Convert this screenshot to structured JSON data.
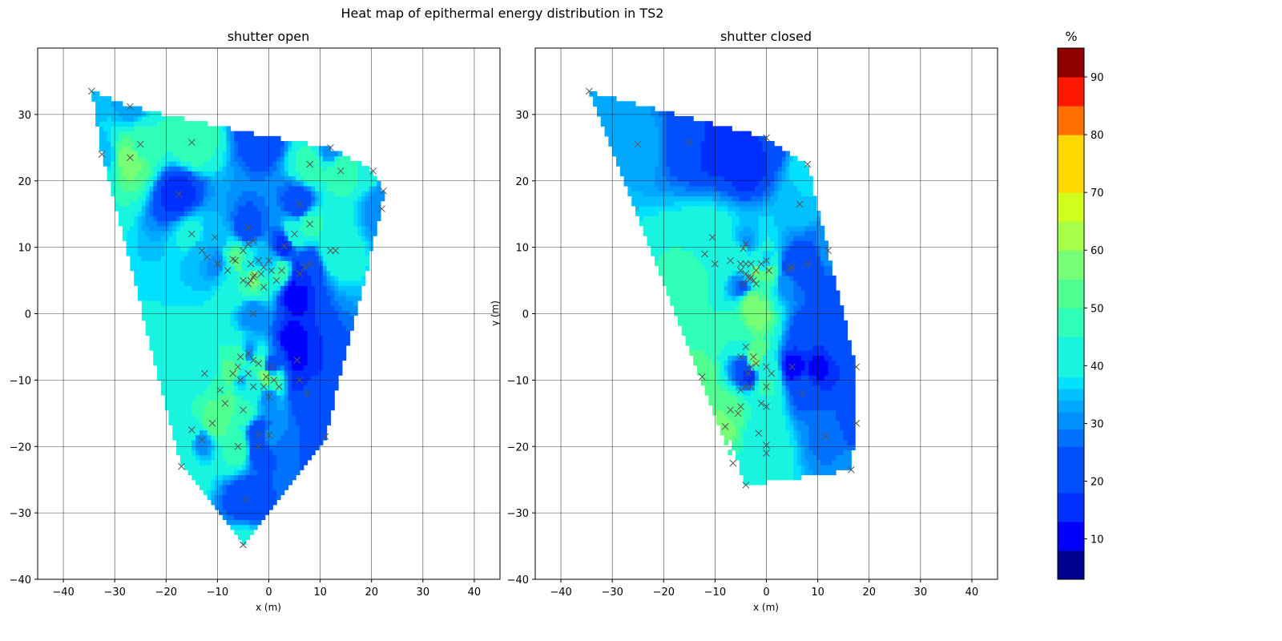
{
  "figure_title": "Heat map of epithermal energy distribution in TS2",
  "colormap": [
    "#00008f",
    "#0000ff",
    "#0030ff",
    "#0050ff",
    "#0070ff",
    "#0090ff",
    "#00a8ff",
    "#00c0ff",
    "#00e0ff",
    "#18f4e0",
    "#30ffb8",
    "#50ff90",
    "#78ff78",
    "#a8ff48",
    "#d0ff20",
    "#ffd800",
    "#ff7000",
    "#ff1800",
    "#8f0000"
  ],
  "marker_color": "#555555",
  "chart_data": [
    {
      "type": "heatmap",
      "title": "shutter open",
      "xlabel": "x (m)",
      "ylabel": "y (m)",
      "xlim": [
        -45,
        45
      ],
      "ylim": [
        -40,
        40
      ],
      "xticks": [
        -40,
        -30,
        -20,
        -10,
        0,
        10,
        20,
        30,
        40
      ],
      "yticks": [
        -40,
        -30,
        -20,
        -10,
        0,
        10,
        20,
        30
      ],
      "grid": true,
      "boundary": [
        [
          -34.5,
          33.5
        ],
        [
          -27,
          31.2
        ],
        [
          -1,
          26.8
        ],
        [
          12,
          25
        ],
        [
          20.3,
          21.5
        ],
        [
          22.3,
          18.5
        ],
        [
          22,
          15.8
        ],
        [
          11,
          -18.5
        ],
        [
          -5,
          -34.8
        ],
        [
          -17,
          -23
        ],
        [
          -32.5,
          24
        ]
      ],
      "points": [
        [
          -34.5,
          33.5,
          34
        ],
        [
          -27,
          31.2,
          33
        ],
        [
          -32.5,
          24,
          34
        ],
        [
          -27,
          23.5,
          58
        ],
        [
          -25,
          25.5,
          48
        ],
        [
          -15,
          25.8,
          50
        ],
        [
          -1,
          26.8,
          20
        ],
        [
          12,
          25,
          30
        ],
        [
          8,
          22.5,
          48
        ],
        [
          14,
          21.5,
          50
        ],
        [
          20.3,
          21.5,
          45
        ],
        [
          22.3,
          18.5,
          30
        ],
        [
          22,
          15.8,
          30
        ],
        [
          -17.5,
          18,
          14
        ],
        [
          -15,
          12,
          40
        ],
        [
          -10.5,
          11.5,
          34
        ],
        [
          -4,
          13,
          22
        ],
        [
          6,
          16.5,
          20
        ],
        [
          8,
          13.5,
          48
        ],
        [
          5,
          12,
          45
        ],
        [
          12,
          9.5,
          40
        ],
        [
          13,
          9.5,
          45
        ],
        [
          3,
          10.2,
          14
        ],
        [
          -6.5,
          8,
          55
        ],
        [
          -3.5,
          7.5,
          40
        ],
        [
          -2,
          8,
          35
        ],
        [
          0,
          8,
          34
        ],
        [
          2.5,
          6.5,
          50
        ],
        [
          -1.5,
          6,
          45
        ],
        [
          -3,
          5.5,
          58
        ],
        [
          -5,
          5,
          45
        ],
        [
          8,
          7.5,
          20
        ],
        [
          6,
          6,
          14
        ],
        [
          -8,
          6.5,
          38
        ],
        [
          -13,
          9.5,
          34
        ],
        [
          -10,
          7.5,
          30
        ],
        [
          5,
          3,
          8
        ],
        [
          4.5,
          -4,
          10
        ],
        [
          7.5,
          -12,
          22
        ],
        [
          6,
          -10,
          14
        ],
        [
          5.5,
          -7,
          12
        ],
        [
          -3,
          0,
          30
        ],
        [
          -4,
          -6,
          30
        ],
        [
          -5.5,
          -6.5,
          50
        ],
        [
          -2,
          -7.5,
          50
        ],
        [
          0.5,
          -8,
          20
        ],
        [
          -0.5,
          -9.5,
          58
        ],
        [
          1,
          -10,
          48
        ],
        [
          -3,
          -11,
          40
        ],
        [
          0,
          -12.5,
          30
        ],
        [
          -9.5,
          -11.5,
          48
        ],
        [
          -8.5,
          -13.5,
          55
        ],
        [
          -11,
          -16.5,
          55
        ],
        [
          -13,
          -19,
          30
        ],
        [
          -15,
          -17.5,
          45
        ],
        [
          -5,
          -14.5,
          48
        ],
        [
          -6,
          -20,
          50
        ],
        [
          -2,
          -20,
          20
        ],
        [
          -2,
          -18.2,
          20
        ],
        [
          0,
          -18.3,
          30
        ],
        [
          11,
          -18.5,
          20
        ],
        [
          -4.5,
          -28,
          20
        ],
        [
          -5,
          -34.8,
          40
        ],
        [
          -17,
          -23,
          45
        ],
        [
          -12.5,
          -9,
          40
        ],
        [
          -7,
          -9,
          55
        ],
        [
          -5.5,
          -10,
          35
        ]
      ],
      "markers": [
        [
          -34.5,
          33.5
        ],
        [
          -27,
          31.2
        ],
        [
          -32.5,
          24
        ],
        [
          -27,
          23.5
        ],
        [
          -25,
          25.5
        ],
        [
          -15,
          25.8
        ],
        [
          12,
          25
        ],
        [
          8,
          22.5
        ],
        [
          14,
          21.5
        ],
        [
          20.3,
          21.5
        ],
        [
          22.3,
          18.5
        ],
        [
          22,
          15.8
        ],
        [
          -17.5,
          18
        ],
        [
          -15,
          12
        ],
        [
          -10.5,
          11.5
        ],
        [
          -4,
          13
        ],
        [
          6,
          16.5
        ],
        [
          8,
          13.5
        ],
        [
          5,
          12
        ],
        [
          12,
          9.5
        ],
        [
          13,
          9.5
        ],
        [
          3,
          10.2
        ],
        [
          -4,
          10.5
        ],
        [
          -3,
          11
        ],
        [
          -5,
          9.5
        ],
        [
          -6.5,
          8
        ],
        [
          -7,
          8.2
        ],
        [
          -3.5,
          7.5
        ],
        [
          -2,
          8
        ],
        [
          0,
          8
        ],
        [
          2.5,
          6.5
        ],
        [
          -1.5,
          6
        ],
        [
          -3,
          5.5
        ],
        [
          -3.5,
          5
        ],
        [
          -2.8,
          5.8
        ],
        [
          -5,
          5
        ],
        [
          8,
          7.5
        ],
        [
          7,
          7
        ],
        [
          6,
          6
        ],
        [
          -8,
          6.5
        ],
        [
          -13,
          9.5
        ],
        [
          -12,
          8.5
        ],
        [
          -10,
          7.5
        ],
        [
          -1,
          7
        ],
        [
          0.5,
          6.5
        ],
        [
          -4,
          4.5
        ],
        [
          1.5,
          5
        ],
        [
          -1,
          4
        ],
        [
          -3,
          0
        ],
        [
          -4,
          -6
        ],
        [
          -5.5,
          -6.5
        ],
        [
          -3,
          -7
        ],
        [
          -2,
          -7.5
        ],
        [
          0.5,
          -8
        ],
        [
          -0.5,
          -9.5
        ],
        [
          1,
          -10
        ],
        [
          -3,
          -11
        ],
        [
          0,
          -12.5
        ],
        [
          5.5,
          -7
        ],
        [
          6,
          -10
        ],
        [
          7.5,
          -12
        ],
        [
          -9.5,
          -11.5
        ],
        [
          -8.5,
          -13.5
        ],
        [
          -11,
          -16.5
        ],
        [
          -13,
          -19
        ],
        [
          -15,
          -17.5
        ],
        [
          -5,
          -14.5
        ],
        [
          -6,
          -20
        ],
        [
          -2,
          -20
        ],
        [
          -2,
          -18.2
        ],
        [
          0,
          -18.3
        ],
        [
          11,
          -18.5
        ],
        [
          -4.5,
          -28
        ],
        [
          -5,
          -34.8
        ],
        [
          -17,
          -23
        ],
        [
          -12.5,
          -9
        ],
        [
          -7,
          -9
        ],
        [
          -5.5,
          -10
        ],
        [
          -6,
          -8
        ],
        [
          -1,
          -11
        ],
        [
          2,
          -11
        ],
        [
          -4,
          -9
        ]
      ]
    },
    {
      "type": "heatmap",
      "title": "shutter closed",
      "xlabel": "x (m)",
      "ylabel": "y (m)",
      "xlim": [
        -45,
        45
      ],
      "ylim": [
        -40,
        40
      ],
      "xticks": [
        -40,
        -30,
        -20,
        -10,
        0,
        10,
        20,
        30,
        40
      ],
      "yticks": [
        -40,
        -30,
        -20,
        -10,
        0,
        10,
        20,
        30
      ],
      "grid": true,
      "boundary": [
        [
          -34.5,
          33.5
        ],
        [
          0,
          26.5
        ],
        [
          8,
          22.5
        ],
        [
          12,
          9.5
        ],
        [
          17.5,
          -8
        ],
        [
          17.5,
          -16.5
        ],
        [
          16.5,
          -23.5
        ],
        [
          -4,
          -25.8
        ],
        [
          -8,
          -17
        ],
        [
          -6.5,
          -22.5
        ]
      ],
      "points": [
        [
          -34.5,
          33.5,
          34
        ],
        [
          -25,
          25.5,
          34
        ],
        [
          -15,
          25.8,
          22
        ],
        [
          -10,
          25,
          14
        ],
        [
          -4,
          22,
          14
        ],
        [
          0,
          26.5,
          18
        ],
        [
          8,
          22.5,
          38
        ],
        [
          6.5,
          16.5,
          36
        ],
        [
          12,
          9.5,
          30
        ],
        [
          -10.5,
          11.5,
          40
        ],
        [
          -12,
          9,
          45
        ],
        [
          -10,
          7.5,
          45
        ],
        [
          -4,
          10.5,
          30
        ],
        [
          -4.5,
          9.8,
          40
        ],
        [
          -7,
          8,
          45
        ],
        [
          -5,
          7.5,
          45
        ],
        [
          -3,
          7.5,
          40
        ],
        [
          -1,
          7.5,
          38
        ],
        [
          0,
          8,
          36
        ],
        [
          0.5,
          6.5,
          55
        ],
        [
          -2,
          6.5,
          60
        ],
        [
          -3.5,
          5.5,
          40
        ],
        [
          -4.5,
          4.5,
          20
        ],
        [
          -5,
          5,
          30
        ],
        [
          5,
          7,
          22
        ],
        [
          8,
          7.5,
          20
        ],
        [
          5,
          6.5,
          22
        ],
        [
          -2,
          0,
          60
        ],
        [
          -3,
          2,
          58
        ],
        [
          -5,
          -3,
          50
        ],
        [
          -10,
          -3,
          48
        ],
        [
          -15,
          5,
          50
        ],
        [
          -2,
          -6,
          55
        ],
        [
          -2.5,
          -7,
          58
        ],
        [
          -3.5,
          -9,
          14
        ],
        [
          -4.5,
          -7.5,
          24
        ],
        [
          -5,
          -5,
          40
        ],
        [
          0,
          -8,
          38
        ],
        [
          1,
          -9,
          40
        ],
        [
          0,
          -11,
          50
        ],
        [
          -1,
          -13.5,
          40
        ],
        [
          0,
          -14,
          40
        ],
        [
          -12.5,
          -9.5,
          55
        ],
        [
          -8,
          -17,
          58
        ],
        [
          -7,
          -14.5,
          55
        ],
        [
          -5.5,
          -15,
          50
        ],
        [
          -6.5,
          -22.5,
          45
        ],
        [
          -4,
          -25.8,
          40
        ],
        [
          0,
          -21,
          40
        ],
        [
          0,
          -19.8,
          40
        ],
        [
          -1.5,
          -18,
          40
        ],
        [
          5,
          -8,
          10
        ],
        [
          10,
          -8,
          12
        ],
        [
          7,
          -12,
          25
        ],
        [
          11.5,
          -18.5,
          28
        ],
        [
          17.5,
          -8,
          18
        ],
        [
          17.5,
          -16.5,
          24
        ],
        [
          16.5,
          -23.5,
          30
        ],
        [
          4,
          5,
          30
        ],
        [
          8,
          -3,
          20
        ],
        [
          14,
          -4,
          22
        ],
        [
          12,
          2,
          24
        ]
      ],
      "markers": [
        [
          -34.5,
          33.5
        ],
        [
          -25,
          25.5
        ],
        [
          -15,
          25.8
        ],
        [
          0,
          26.5
        ],
        [
          8,
          22.5
        ],
        [
          6.5,
          16.5
        ],
        [
          12,
          9.5
        ],
        [
          -10.5,
          11.5
        ],
        [
          -12,
          9
        ],
        [
          -10,
          7.5
        ],
        [
          -4,
          10.5
        ],
        [
          -4.5,
          9.8
        ],
        [
          -7,
          8
        ],
        [
          -5,
          7.5
        ],
        [
          -3,
          7.5
        ],
        [
          -1,
          7.5
        ],
        [
          0,
          8
        ],
        [
          0.5,
          6.5
        ],
        [
          -2,
          6.5
        ],
        [
          -3.5,
          5.5
        ],
        [
          -4.5,
          4.5
        ],
        [
          -3,
          5.5
        ],
        [
          -2.5,
          5
        ],
        [
          -4,
          6
        ],
        [
          -3.2,
          5.2
        ],
        [
          5,
          7
        ],
        [
          4.5,
          6.8
        ],
        [
          8,
          7.5
        ],
        [
          -4,
          7.5
        ],
        [
          -5,
          6.5
        ],
        [
          -2,
          4.5
        ],
        [
          -5,
          -6.5
        ],
        [
          -4,
          -5
        ],
        [
          -2.5,
          -6.5
        ],
        [
          -2,
          -7.5
        ],
        [
          -3,
          -8
        ],
        [
          0,
          -8
        ],
        [
          1,
          -9
        ],
        [
          -3.5,
          -9
        ],
        [
          -4,
          -11
        ],
        [
          0,
          -11
        ],
        [
          -1,
          -13.5
        ],
        [
          0,
          -14
        ],
        [
          -12.5,
          -9.5
        ],
        [
          -8,
          -17
        ],
        [
          -7,
          -14.5
        ],
        [
          -5.5,
          -15
        ],
        [
          -6.5,
          -22.5
        ],
        [
          -4,
          -25.8
        ],
        [
          0,
          -21
        ],
        [
          0,
          -19.8
        ],
        [
          -1.5,
          -18
        ],
        [
          -5,
          -11.5
        ],
        [
          -5,
          -14
        ],
        [
          5,
          -8
        ],
        [
          7,
          -12
        ],
        [
          11.5,
          -18.5
        ],
        [
          17.5,
          -8
        ],
        [
          17.5,
          -16.5
        ],
        [
          16.5,
          -23.5
        ],
        [
          -3,
          -11
        ]
      ]
    }
  ],
  "colorbar": {
    "label": "%",
    "levels": [
      3,
      8,
      13,
      18,
      23,
      26,
      29,
      32,
      34,
      36,
      38,
      40,
      45,
      50,
      55,
      60,
      65,
      70,
      75,
      80,
      85,
      90,
      95
    ],
    "ticks": [
      10,
      20,
      30,
      40,
      50,
      60,
      70,
      80,
      90
    ]
  }
}
